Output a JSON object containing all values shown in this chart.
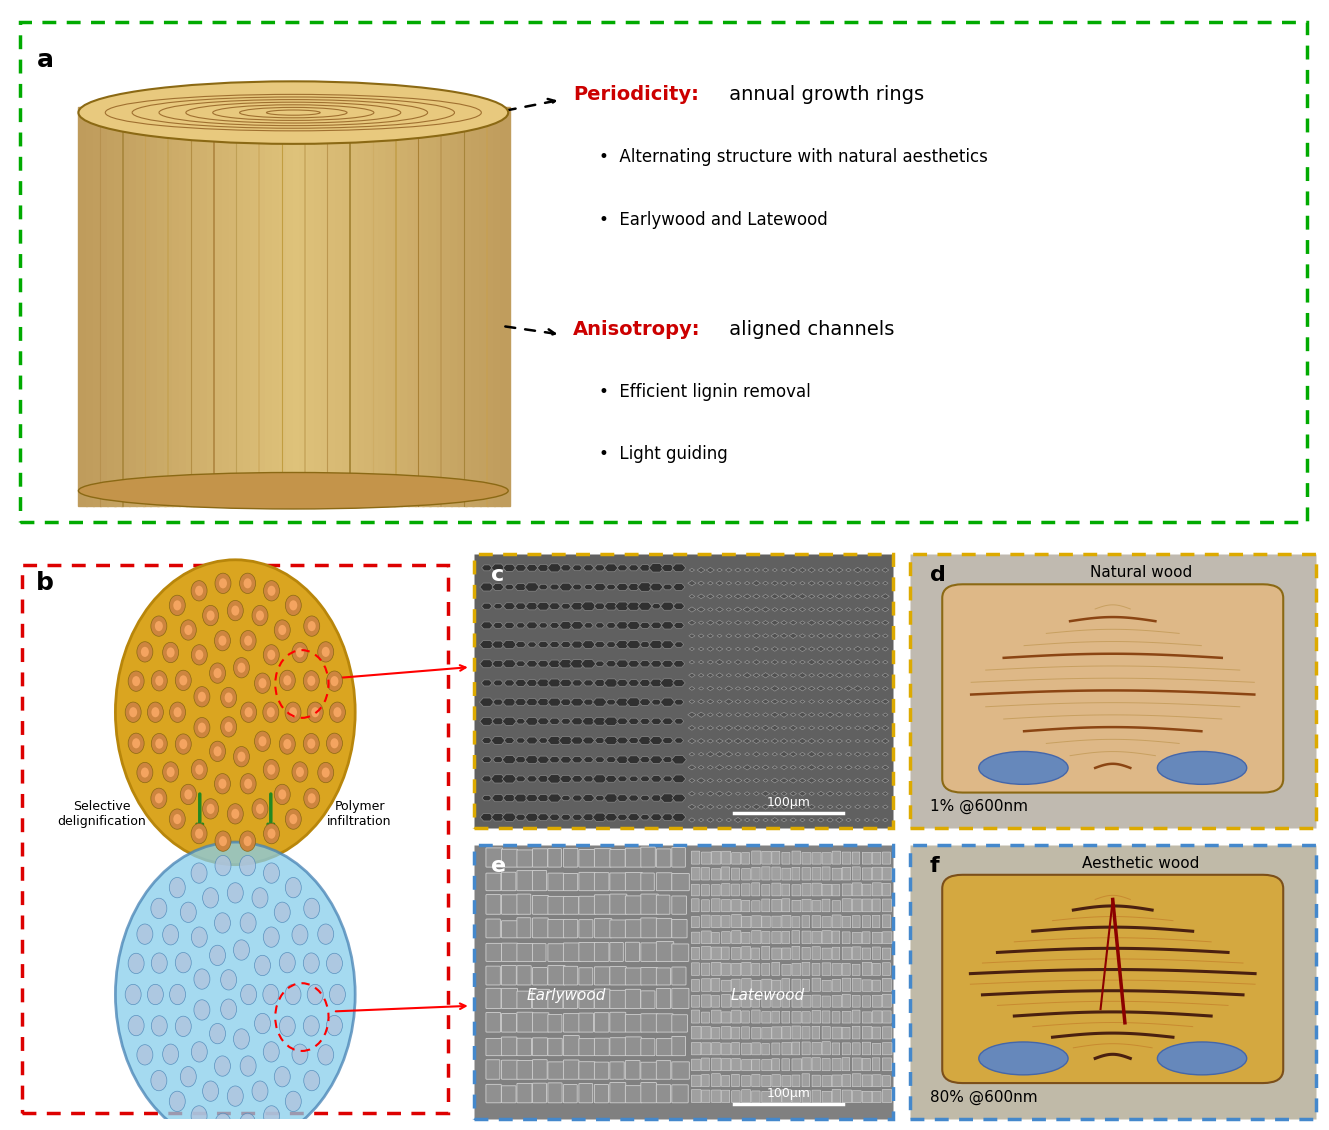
{
  "panel_a_label": "a",
  "panel_b_label": "b",
  "panel_c_label": "c",
  "panel_d_label": "d",
  "panel_e_label": "e",
  "panel_f_label": "f",
  "periodicity_label": "Periodicity:",
  "periodicity_text": " annual growth rings",
  "bullet1": "Alternating structure with natural aesthetics",
  "bullet2": "Earlywood and Latewood",
  "anisotropy_label": "Anisotropy:",
  "anisotropy_text": " aligned channels",
  "bullet3": "Efficient lignin removal",
  "bullet4": "Light guiding",
  "selective_delignification": "Selective\ndelignification",
  "polymer_infiltration": "Polymer\ninfiltration",
  "natural_wood_label": "Natural wood",
  "aesthetic_wood_label": "Aesthetic wood",
  "earlywood_label": "Earlywood",
  "latewood_label": "Latewood",
  "scale_bar_c": "100μm",
  "scale_bar_e": "100μm",
  "transmittance_d": "1% @600nm",
  "transmittance_f": "80% @600nm",
  "border_green": "#00aa00",
  "border_red": "#dd0000",
  "border_orange": "#ddaa00",
  "border_blue": "#4488cc",
  "red_color": "#CC0000",
  "green_arrow": "#228822",
  "bg_color": "#ffffff",
  "label_fontsize": 14,
  "bullet_fontsize": 12
}
